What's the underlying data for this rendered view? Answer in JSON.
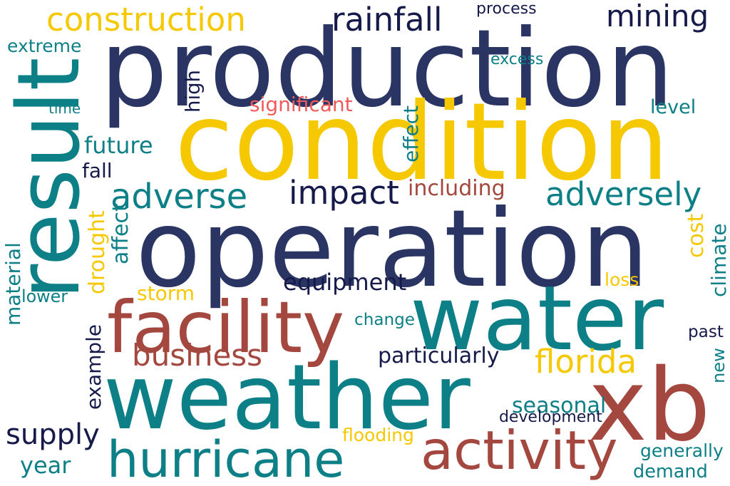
{
  "colors": {
    "navy": "#2b3564",
    "teal": "#0d7f86",
    "gold": "#f6c800",
    "brick": "#a3473f",
    "coral": "#f15a5a",
    "dark": "#161a4a"
  },
  "words": [
    {
      "text": "production",
      "color": "navy"
    },
    {
      "text": "condition",
      "color": "gold"
    },
    {
      "text": "operation",
      "color": "navy"
    },
    {
      "text": "water",
      "color": "teal"
    },
    {
      "text": "weather",
      "color": "teal"
    },
    {
      "text": "result",
      "color": "teal"
    },
    {
      "text": "xb",
      "color": "brick"
    },
    {
      "text": "facility",
      "color": "brick"
    },
    {
      "text": "hurricane",
      "color": "teal"
    },
    {
      "text": "activity",
      "color": "brick"
    },
    {
      "text": "construction",
      "color": "gold"
    },
    {
      "text": "rainfall",
      "color": "dark"
    },
    {
      "text": "mining",
      "color": "dark"
    },
    {
      "text": "adverse",
      "color": "teal"
    },
    {
      "text": "impact",
      "color": "dark"
    },
    {
      "text": "adversely",
      "color": "teal"
    },
    {
      "text": "business",
      "color": "brick"
    },
    {
      "text": "florida",
      "color": "gold"
    },
    {
      "text": "supply",
      "color": "dark"
    },
    {
      "text": "equipment",
      "color": "dark"
    },
    {
      "text": "particularly",
      "color": "dark"
    },
    {
      "text": "including",
      "color": "brick"
    },
    {
      "text": "future",
      "color": "teal"
    },
    {
      "text": "seasonal",
      "color": "teal"
    },
    {
      "text": "demand",
      "color": "teal"
    },
    {
      "text": "significant",
      "color": "coral"
    },
    {
      "text": "extreme",
      "color": "teal"
    },
    {
      "text": "level",
      "color": "teal"
    },
    {
      "text": "process",
      "color": "dark"
    },
    {
      "text": "excess",
      "color": "teal"
    },
    {
      "text": "high",
      "color": "dark"
    },
    {
      "text": "time",
      "color": "teal"
    },
    {
      "text": "effect",
      "color": "teal"
    },
    {
      "text": "fall",
      "color": "dark"
    },
    {
      "text": "drought",
      "color": "gold"
    },
    {
      "text": "affect",
      "color": "teal"
    },
    {
      "text": "storm",
      "color": "gold"
    },
    {
      "text": "cost",
      "color": "gold"
    },
    {
      "text": "climate",
      "color": "teal"
    },
    {
      "text": "loss",
      "color": "gold"
    },
    {
      "text": "material",
      "color": "teal"
    },
    {
      "text": "lower",
      "color": "teal"
    },
    {
      "text": "example",
      "color": "dark"
    },
    {
      "text": "change",
      "color": "teal"
    },
    {
      "text": "past",
      "color": "dark"
    },
    {
      "text": "new",
      "color": "teal"
    },
    {
      "text": "development",
      "color": "dark"
    },
    {
      "text": "flooding",
      "color": "gold"
    },
    {
      "text": "generally",
      "color": "teal"
    },
    {
      "text": "year",
      "color": "teal"
    }
  ]
}
